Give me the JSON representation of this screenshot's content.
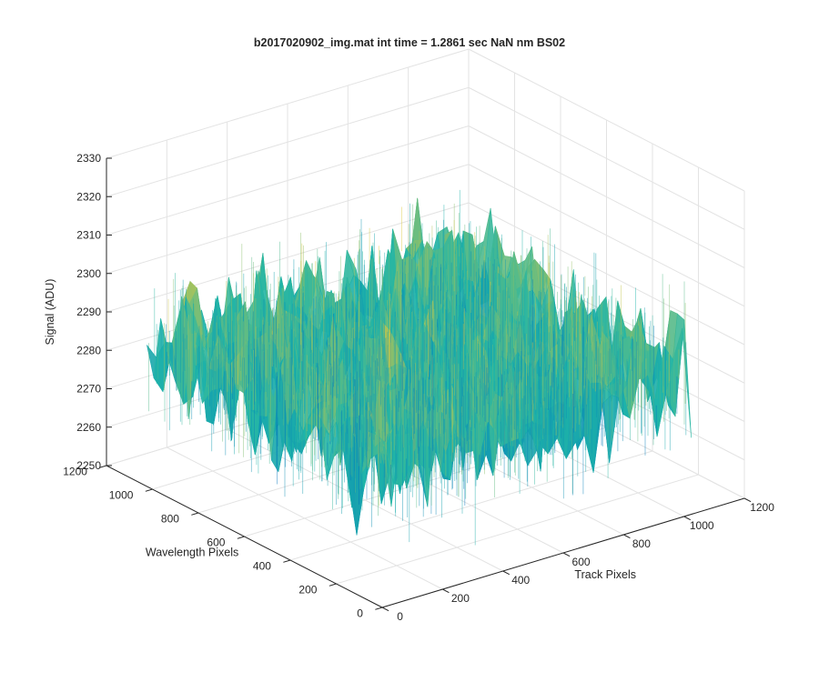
{
  "chart_data": {
    "type": "surface",
    "title": "b2017020902_img.mat int time = 1.2861 sec  NaN nm BS02",
    "xlabel": "Track Pixels",
    "ylabel": "Wavelength Pixels",
    "zlabel": "Signal (ADU)",
    "xlim": [
      0,
      1200
    ],
    "ylim": [
      0,
      1200
    ],
    "zlim": [
      2250,
      2330
    ],
    "xticks": [
      0,
      200,
      400,
      600,
      800,
      1000,
      1200
    ],
    "yticks": [
      0,
      200,
      400,
      600,
      800,
      1000,
      1200
    ],
    "zticks": [
      2250,
      2260,
      2270,
      2280,
      2290,
      2300,
      2310,
      2320,
      2330
    ],
    "grid": true,
    "colormap": "parula",
    "surface": {
      "x_range": [
        0,
        1024
      ],
      "y_range": [
        0,
        1024
      ],
      "mean_signal": 2285,
      "noise_peak_to_peak": 40,
      "min_signal": 2250,
      "max_signal": 2318
    }
  },
  "colors": {
    "axis": "#262626",
    "grid": "#e3e3e3",
    "low": "#0072bd",
    "mid": "#1fb5a8",
    "high": "#e3c83a"
  }
}
